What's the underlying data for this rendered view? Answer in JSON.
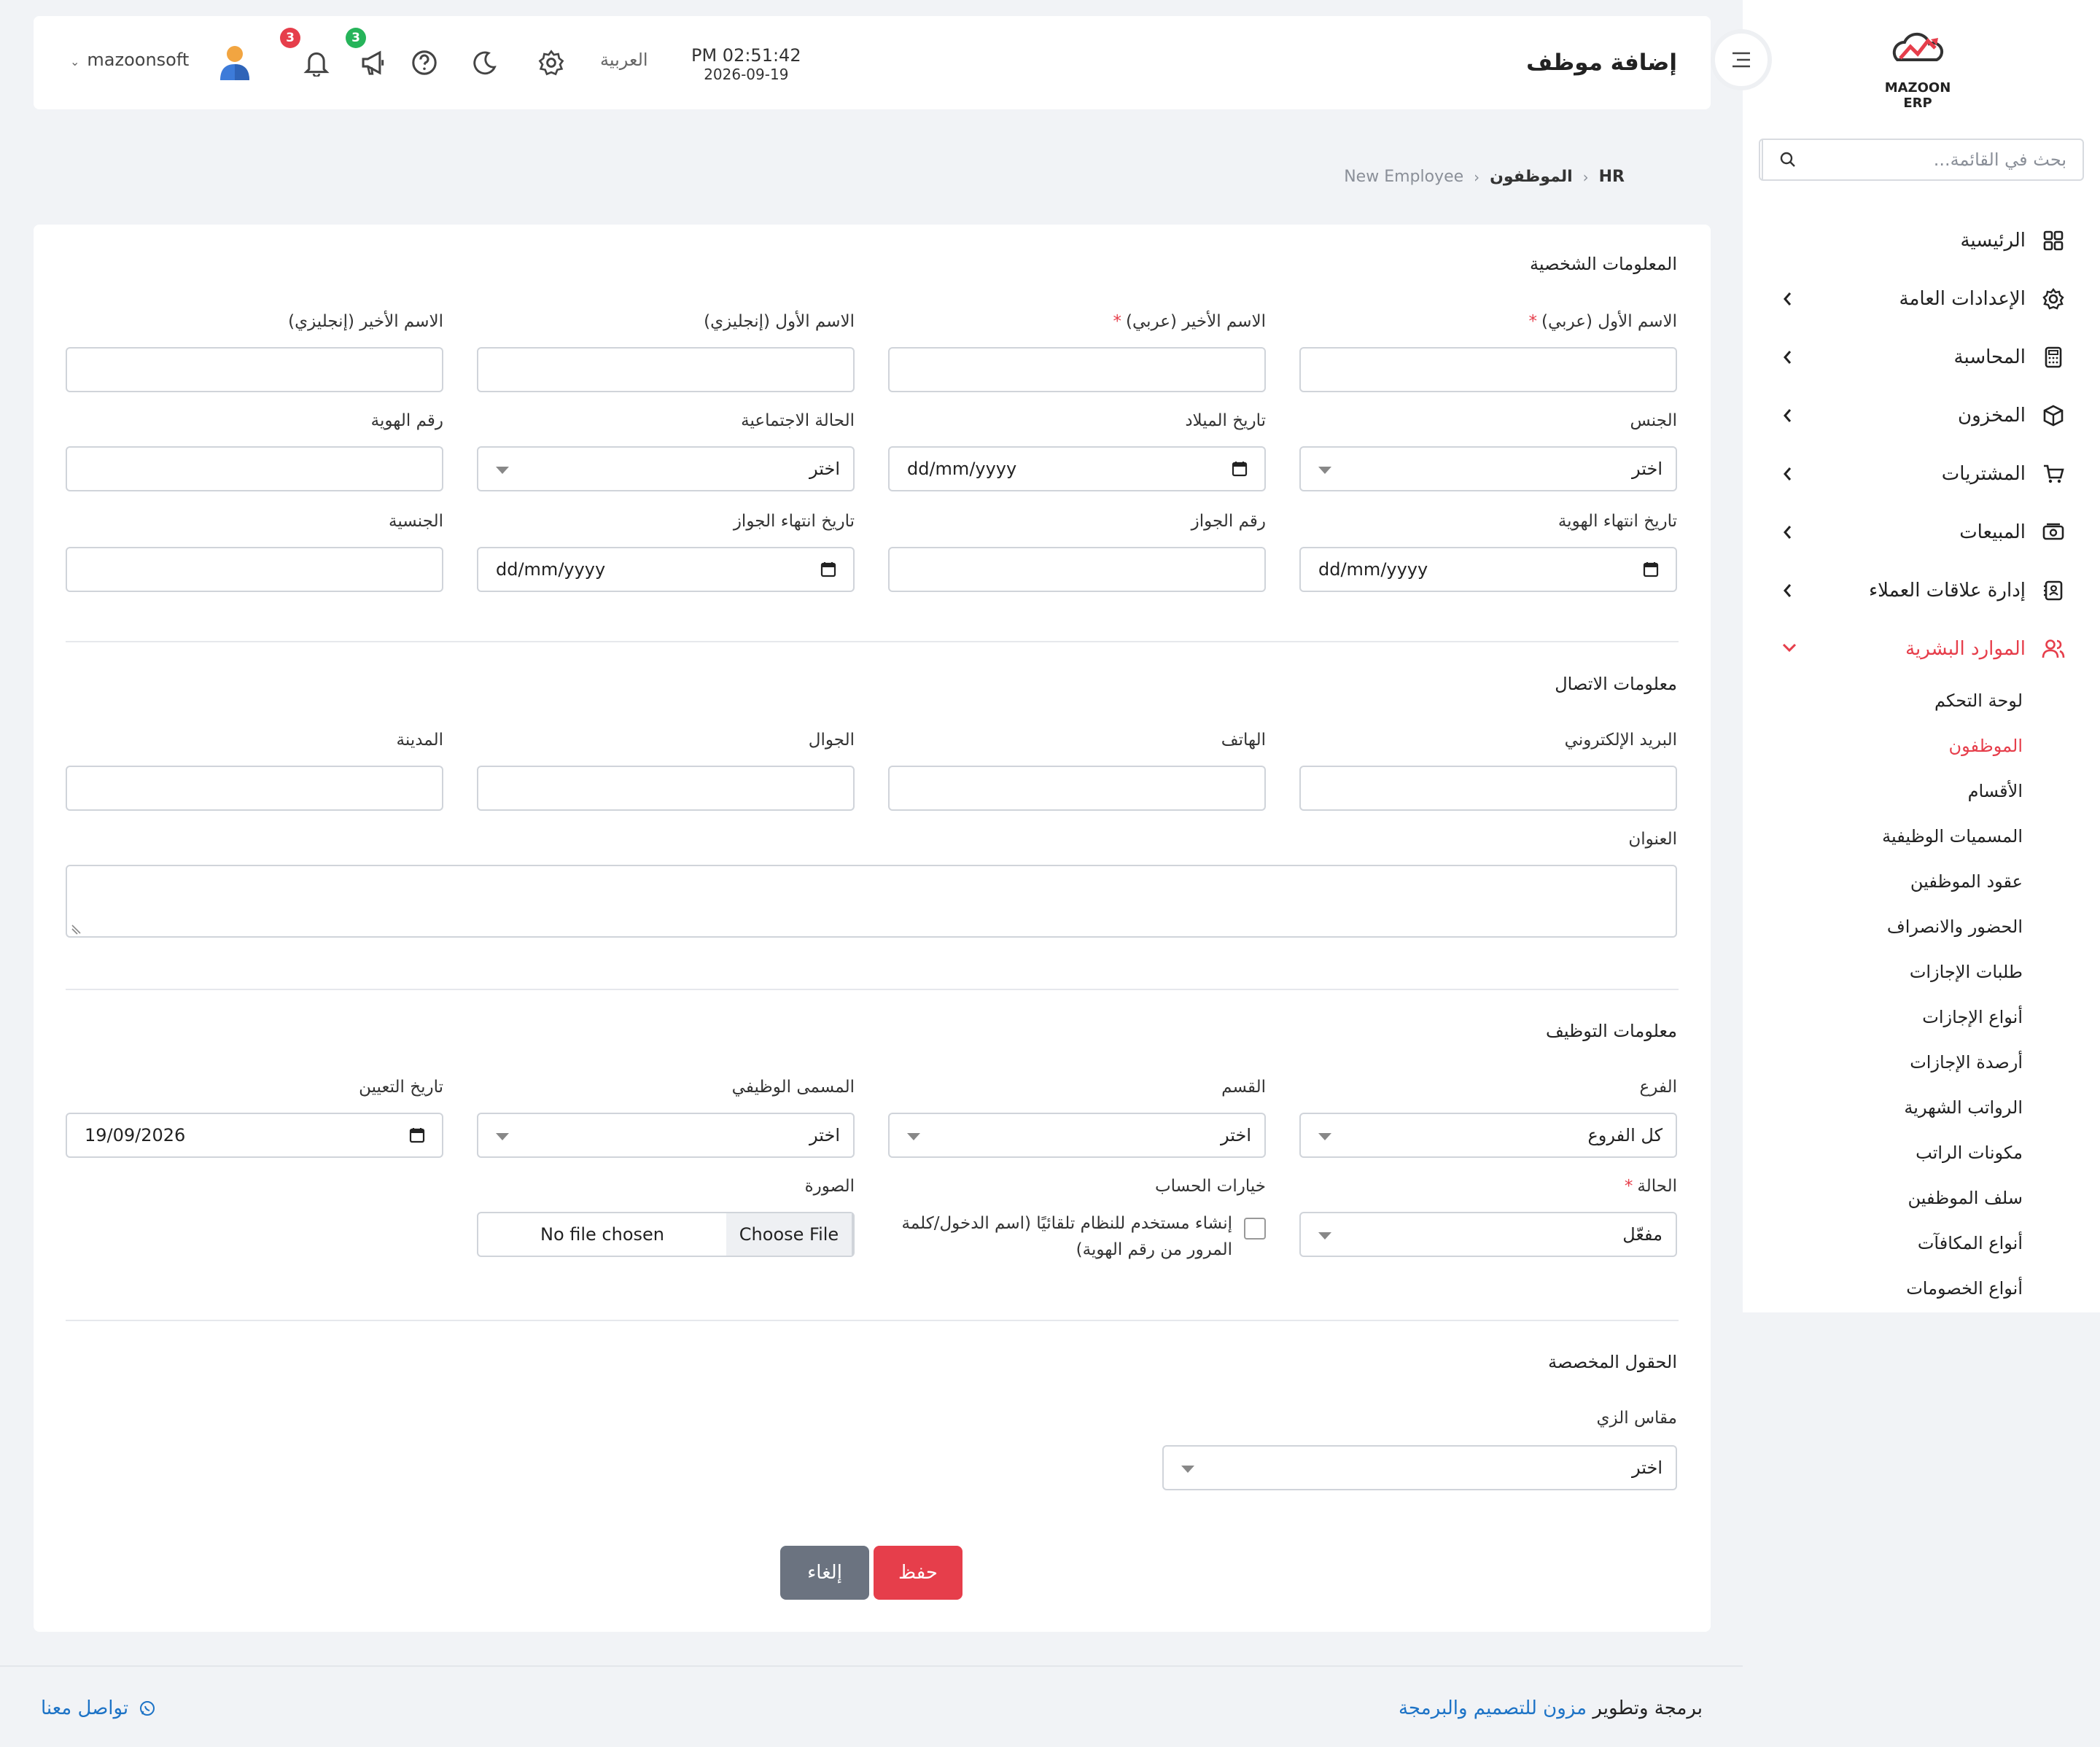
{
  "sidebar": {
    "logo_text": "MAZOON ERP",
    "search_placeholder": "بحث في القائمة...",
    "items": [
      {
        "label": "الرئيسية",
        "icon": "grid-icon"
      },
      {
        "label": "الإعدادات العامة",
        "icon": "gear-icon"
      },
      {
        "label": "المحاسبة",
        "icon": "calculator-icon"
      },
      {
        "label": "المخزون",
        "icon": "box-icon"
      },
      {
        "label": "المشتريات",
        "icon": "cart-icon"
      },
      {
        "label": "المبيعات",
        "icon": "cash-icon"
      },
      {
        "label": "إدارة علاقات العملاء",
        "icon": "contacts-icon"
      },
      {
        "label": "الموارد البشرية",
        "icon": "users-icon"
      }
    ],
    "hr_sub": [
      "لوحة التحكم",
      "الموظفون",
      "الأقسام",
      "المسميات الوظيفية",
      "عقود الموظفين",
      "الحضور والانصراف",
      "طلبات الإجازات",
      "أنواع الإجازات",
      "أرصدة الإجازات",
      "الرواتب الشهرية",
      "مكونات الراتب",
      "سلف الموظفين",
      "أنواع المكافآت",
      "أنواع الخصومات"
    ],
    "active_color": "#e63e4b"
  },
  "header": {
    "title": "إضافة موظف",
    "time": "PM 02:51:42",
    "date": "2026-09-19",
    "language": "العربية",
    "announcements_count": "3",
    "notifications_count": "3",
    "username": "mazoonsoft"
  },
  "breadcrumb": {
    "root": "HR",
    "parent": "الموظفون",
    "current": "New Employee"
  },
  "form": {
    "personal_title": "المعلومات الشخصية",
    "first_name_ar": "الاسم الأول (عربي)",
    "last_name_ar": "الاسم الأخير (عربي)",
    "first_name_en": "الاسم الأول (إنجليزي)",
    "last_name_en": "الاسم الأخير (إنجليزي)",
    "gender": "الجنس",
    "birth_date": "تاريخ الميلاد",
    "marital_status": "الحالة الاجتماعية",
    "id_number": "رقم الهوية",
    "id_expiry": "تاريخ انتهاء الهوية",
    "passport_number": "رقم الجواز",
    "passport_expiry": "تاريخ انتهاء الجواز",
    "nationality": "الجنسية",
    "select_placeholder": "اختر",
    "date_placeholder": "dd/mm/yyyy",
    "contact_title": "معلومات الاتصال",
    "email": "البريد الإلكتروني",
    "phone": "الهاتف",
    "mobile": "الجوال",
    "city": "المدينة",
    "address": "العنوان",
    "employment_title": "معلومات التوظيف",
    "branch": "الفرع",
    "branch_value": "كل الفروع",
    "department": "القسم",
    "job_title": "المسمى الوظيفي",
    "hire_date": "تاريخ التعيين",
    "hire_date_value": "19/09/2026",
    "status": "الحالة",
    "status_value": "مفعّل",
    "account_options": "خيارات الحساب",
    "auto_user_line1": "إنشاء مستخدم للنظام تلقائيًا (اسم الدخول/كلمة",
    "auto_user_line2": "المرور من رقم الهوية)",
    "photo": "الصورة",
    "choose_file": "Choose File",
    "no_file": "No file chosen",
    "custom_title": "الحقول المخصصة",
    "uniform_size": "مقاس الزي",
    "save": "حفظ",
    "cancel": "إلغاء",
    "save_color": "#e63e4b",
    "cancel_color": "#6b7380"
  },
  "footer": {
    "credit_prefix": "برمجة وتطوير",
    "credit_link": "مزون للتصميم والبرمجة",
    "contact": "تواصل معنا"
  }
}
